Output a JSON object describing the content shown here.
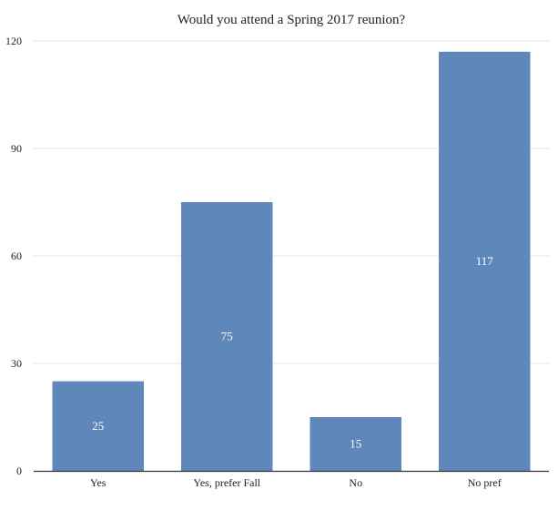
{
  "chart_data": {
    "type": "bar",
    "title": "Would you attend a Spring 2017 reunion?",
    "xlabel": "",
    "ylabel": "",
    "categories": [
      "Yes",
      "Yes, prefer Fall",
      "No",
      "No pref"
    ],
    "values": [
      25,
      75,
      15,
      117
    ],
    "data_labels": [
      "25",
      "75",
      "15",
      "117"
    ],
    "yticks": [
      0,
      30,
      60,
      90,
      120
    ],
    "ylim": [
      0,
      120
    ],
    "grid": true,
    "legend": "none",
    "colors": {
      "bar": "#5f87b9",
      "grid": "#e6e6e6",
      "axis": "#333333",
      "text": "#222222",
      "data_label": "#ffffff"
    }
  }
}
